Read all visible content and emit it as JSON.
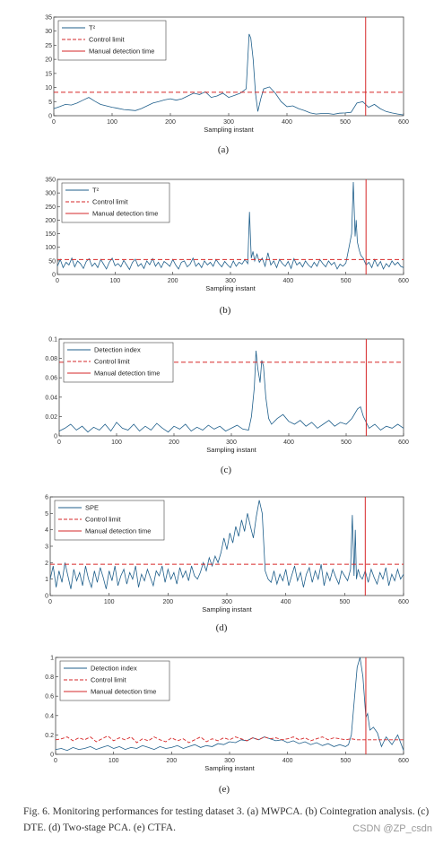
{
  "caption": "Fig. 6.    Monitoring performances for testing dataset 3. (a) MWPCA. (b) Cointegration analysis. (c) DTE. (d) Two-stage PCA. (e) CTFA.",
  "watermark": "CSDN @ZP_csdn",
  "colors": {
    "series": "#1f5f8b",
    "limit": "#d62728",
    "detection": "#d62728"
  },
  "chart_data": [
    {
      "type": "line",
      "panel_label": "(a)",
      "xlabel": "Sampling instant",
      "xlim": [
        0,
        600
      ],
      "ylim": [
        0,
        35
      ],
      "xticks": [
        0,
        100,
        200,
        300,
        400,
        500,
        600
      ],
      "yticks": [
        0,
        5,
        10,
        15,
        20,
        25,
        30,
        35
      ],
      "legend": [
        "T²",
        "Control limit",
        "Manual detection time"
      ],
      "legend_position": "top-left",
      "control_limit": 8.3,
      "detection_time": 535,
      "series": {
        "name": "T²",
        "x": [
          0,
          10,
          20,
          30,
          40,
          50,
          60,
          70,
          80,
          90,
          100,
          110,
          120,
          130,
          140,
          150,
          160,
          170,
          180,
          190,
          200,
          210,
          220,
          230,
          240,
          250,
          260,
          270,
          280,
          290,
          300,
          310,
          320,
          330,
          335,
          338,
          342,
          346,
          350,
          355,
          360,
          370,
          380,
          390,
          400,
          410,
          420,
          430,
          440,
          450,
          460,
          470,
          480,
          490,
          500,
          510,
          520,
          530,
          540,
          550,
          560,
          570,
          580,
          590,
          600
        ],
        "y": [
          2.5,
          3.2,
          4.0,
          3.8,
          4.5,
          5.5,
          6.5,
          5.2,
          4.0,
          3.5,
          3.0,
          2.6,
          2.2,
          2.0,
          1.8,
          2.5,
          3.5,
          4.5,
          5.0,
          5.6,
          6.0,
          5.5,
          6.0,
          7.0,
          8.0,
          7.5,
          8.5,
          6.5,
          7.0,
          8.0,
          6.5,
          7.2,
          8.0,
          9.5,
          29.0,
          27.5,
          20.0,
          8.0,
          1.5,
          6.0,
          9.5,
          10.2,
          8.0,
          5.0,
          3.2,
          3.5,
          2.5,
          1.8,
          1.0,
          0.6,
          0.8,
          0.8,
          0.5,
          0.9,
          1.0,
          1.2,
          4.5,
          5.0,
          3.0,
          4.0,
          2.5,
          1.5,
          1.0,
          0.6,
          0.3
        ]
      }
    },
    {
      "type": "line",
      "panel_label": "(b)",
      "xlabel": "Sampling instant",
      "xlim": [
        0,
        600
      ],
      "ylim": [
        0,
        350
      ],
      "xticks": [
        0,
        100,
        200,
        300,
        400,
        500,
        600
      ],
      "yticks": [
        0,
        50,
        100,
        150,
        200,
        250,
        300,
        350
      ],
      "legend": [
        "T²",
        "Control limit",
        "Manual detection time"
      ],
      "legend_position": "top-left",
      "control_limit": 55,
      "detection_time": 535,
      "series": {
        "name": "T²",
        "x": [
          0,
          5,
          10,
          15,
          20,
          25,
          30,
          35,
          40,
          45,
          50,
          55,
          60,
          65,
          70,
          75,
          80,
          85,
          90,
          95,
          100,
          105,
          110,
          115,
          120,
          125,
          130,
          135,
          140,
          145,
          150,
          155,
          160,
          165,
          170,
          175,
          180,
          185,
          190,
          195,
          200,
          205,
          210,
          215,
          220,
          225,
          230,
          235,
          240,
          245,
          250,
          255,
          260,
          265,
          270,
          275,
          280,
          285,
          290,
          295,
          300,
          305,
          310,
          315,
          320,
          325,
          330,
          333,
          336,
          339,
          342,
          346,
          350,
          355,
          360,
          365,
          370,
          375,
          380,
          385,
          390,
          395,
          400,
          405,
          410,
          415,
          420,
          425,
          430,
          435,
          440,
          445,
          450,
          455,
          460,
          465,
          470,
          475,
          480,
          485,
          490,
          495,
          500,
          505,
          510,
          513,
          516,
          518,
          520,
          523,
          526,
          530,
          535,
          540,
          545,
          550,
          555,
          560,
          565,
          570,
          575,
          580,
          585,
          590,
          595,
          600
        ],
        "y": [
          30,
          55,
          25,
          45,
          35,
          60,
          28,
          50,
          40,
          22,
          48,
          58,
          30,
          42,
          25,
          55,
          38,
          20,
          45,
          60,
          32,
          40,
          28,
          52,
          35,
          18,
          44,
          56,
          30,
          40,
          22,
          50,
          36,
          58,
          30,
          45,
          25,
          48,
          40,
          30,
          55,
          35,
          20,
          45,
          50,
          28,
          38,
          60,
          30,
          42,
          25,
          50,
          35,
          45,
          30,
          55,
          40,
          28,
          48,
          35,
          25,
          50,
          30,
          45,
          38,
          55,
          40,
          230,
          60,
          85,
          50,
          75,
          45,
          60,
          30,
          80,
          35,
          50,
          25,
          55,
          40,
          30,
          48,
          22,
          58,
          35,
          45,
          28,
          50,
          35,
          25,
          45,
          30,
          55,
          40,
          28,
          50,
          35,
          45,
          20,
          38,
          30,
          42,
          95,
          150,
          340,
          140,
          200,
          120,
          90,
          70,
          60,
          35,
          45,
          25,
          55,
          30,
          48,
          20,
          40,
          28,
          50,
          35,
          45,
          30,
          25
        ]
      }
    },
    {
      "type": "line",
      "panel_label": "(c)",
      "xlabel": "Sampling instant",
      "xlim": [
        0,
        600
      ],
      "ylim": [
        0,
        0.1
      ],
      "xticks": [
        0,
        100,
        200,
        300,
        400,
        500,
        600
      ],
      "yticks": [
        0,
        0.02,
        0.04,
        0.06,
        0.08,
        0.1
      ],
      "legend": [
        "Detection index",
        "Control limit",
        "Manual detection time"
      ],
      "legend_position": "top-left",
      "control_limit": 0.076,
      "detection_time": 535,
      "series": {
        "name": "Detection index",
        "x": [
          0,
          10,
          20,
          30,
          40,
          50,
          60,
          70,
          80,
          90,
          100,
          110,
          120,
          130,
          140,
          150,
          160,
          170,
          180,
          190,
          200,
          210,
          220,
          230,
          240,
          250,
          260,
          270,
          280,
          290,
          300,
          310,
          320,
          330,
          335,
          340,
          343,
          346,
          350,
          353,
          356,
          360,
          365,
          370,
          380,
          390,
          400,
          410,
          420,
          430,
          440,
          450,
          460,
          470,
          480,
          490,
          500,
          510,
          520,
          525,
          530,
          540,
          550,
          560,
          570,
          580,
          590,
          600
        ],
        "y": [
          0.005,
          0.008,
          0.012,
          0.006,
          0.01,
          0.004,
          0.009,
          0.006,
          0.012,
          0.005,
          0.014,
          0.008,
          0.006,
          0.012,
          0.005,
          0.01,
          0.006,
          0.013,
          0.008,
          0.004,
          0.01,
          0.007,
          0.012,
          0.005,
          0.009,
          0.006,
          0.011,
          0.007,
          0.01,
          0.005,
          0.008,
          0.011,
          0.007,
          0.006,
          0.02,
          0.05,
          0.088,
          0.07,
          0.055,
          0.078,
          0.072,
          0.04,
          0.018,
          0.012,
          0.018,
          0.022,
          0.015,
          0.012,
          0.016,
          0.01,
          0.014,
          0.008,
          0.012,
          0.016,
          0.01,
          0.014,
          0.012,
          0.018,
          0.028,
          0.03,
          0.02,
          0.008,
          0.012,
          0.006,
          0.01,
          0.008,
          0.012,
          0.008
        ]
      }
    },
    {
      "type": "line",
      "panel_label": "(d)",
      "xlabel": "Sampling instant",
      "xlim": [
        0,
        600
      ],
      "ylim": [
        0,
        6
      ],
      "xticks": [
        0,
        100,
        200,
        300,
        400,
        500,
        600
      ],
      "yticks": [
        0,
        1,
        2,
        3,
        4,
        5,
        6
      ],
      "legend": [
        "SPE",
        "Control limit",
        "Manual detection time"
      ],
      "legend_position": "top-left",
      "control_limit": 1.9,
      "detection_time": 535,
      "series": {
        "name": "SPE",
        "x": [
          0,
          5,
          10,
          15,
          20,
          25,
          30,
          35,
          40,
          45,
          50,
          55,
          60,
          65,
          70,
          75,
          80,
          85,
          90,
          95,
          100,
          105,
          110,
          115,
          120,
          125,
          130,
          135,
          140,
          145,
          150,
          155,
          160,
          165,
          170,
          175,
          180,
          185,
          190,
          195,
          200,
          205,
          210,
          215,
          220,
          225,
          230,
          235,
          240,
          245,
          250,
          255,
          260,
          265,
          270,
          275,
          280,
          285,
          290,
          295,
          300,
          305,
          310,
          315,
          320,
          325,
          330,
          335,
          340,
          345,
          350,
          355,
          360,
          365,
          370,
          375,
          380,
          385,
          390,
          395,
          400,
          405,
          410,
          415,
          420,
          425,
          430,
          435,
          440,
          445,
          450,
          455,
          460,
          465,
          470,
          475,
          480,
          485,
          490,
          495,
          500,
          505,
          510,
          513,
          516,
          518,
          520,
          523,
          526,
          530,
          535,
          540,
          545,
          550,
          555,
          560,
          565,
          570,
          575,
          580,
          585,
          590,
          595,
          600
        ],
        "y": [
          1.0,
          1.8,
          0.5,
          1.5,
          0.8,
          2.0,
          1.2,
          0.4,
          1.6,
          0.9,
          1.4,
          0.6,
          1.8,
          1.0,
          0.5,
          1.5,
          0.8,
          1.7,
          1.1,
          0.4,
          1.5,
          0.9,
          1.8,
          0.6,
          1.2,
          1.6,
          0.7,
          1.4,
          1.0,
          1.8,
          0.5,
          1.3,
          0.9,
          1.6,
          1.1,
          0.6,
          1.5,
          1.2,
          1.8,
          0.8,
          1.6,
          1.0,
          1.4,
          0.7,
          1.7,
          1.1,
          1.5,
          0.9,
          1.8,
          1.2,
          1.0,
          1.4,
          2.0,
          1.5,
          2.3,
          1.8,
          2.4,
          2.0,
          2.6,
          3.5,
          2.8,
          3.8,
          3.2,
          4.2,
          3.6,
          4.6,
          3.9,
          5.0,
          4.2,
          3.5,
          4.8,
          5.8,
          5.0,
          1.5,
          1.0,
          0.8,
          1.5,
          0.7,
          1.3,
          0.9,
          1.6,
          0.6,
          1.2,
          1.8,
          0.9,
          1.4,
          0.5,
          1.3,
          1.7,
          0.8,
          1.5,
          1.0,
          1.9,
          0.6,
          1.4,
          0.9,
          1.6,
          1.1,
          0.7,
          1.5,
          1.2,
          0.9,
          1.6,
          4.9,
          1.2,
          4.0,
          1.0,
          1.6,
          1.2,
          1.0,
          1.5,
          0.8,
          1.6,
          1.1,
          0.7,
          1.4,
          1.0,
          1.7,
          0.6,
          1.3,
          0.9,
          1.6,
          1.0,
          1.3
        ]
      }
    },
    {
      "type": "line",
      "panel_label": "(e)",
      "xlabel": "Sampling instant",
      "xlim": [
        0,
        600
      ],
      "ylim": [
        0,
        1
      ],
      "xticks": [
        0,
        100,
        200,
        300,
        400,
        500,
        600
      ],
      "yticks": [
        0,
        0.2,
        0.4,
        0.6,
        0.8,
        1
      ],
      "legend": [
        "Detection index",
        "Control limit",
        "Manual detection time"
      ],
      "legend_position": "top-left",
      "detection_time": 535,
      "series": [
        {
          "name": "Detection index",
          "x": [
            0,
            10,
            20,
            30,
            40,
            50,
            60,
            70,
            80,
            90,
            100,
            110,
            120,
            130,
            140,
            150,
            160,
            170,
            180,
            190,
            200,
            210,
            220,
            230,
            240,
            250,
            260,
            270,
            280,
            290,
            300,
            310,
            320,
            330,
            340,
            350,
            360,
            370,
            380,
            390,
            400,
            410,
            420,
            430,
            440,
            450,
            460,
            470,
            480,
            490,
            500,
            505,
            510,
            515,
            520,
            525,
            530,
            535,
            538,
            542,
            548,
            555,
            562,
            570,
            580,
            590,
            600
          ],
          "y": [
            0.05,
            0.06,
            0.04,
            0.07,
            0.05,
            0.06,
            0.08,
            0.05,
            0.07,
            0.09,
            0.06,
            0.08,
            0.05,
            0.07,
            0.06,
            0.09,
            0.07,
            0.05,
            0.08,
            0.06,
            0.07,
            0.09,
            0.06,
            0.08,
            0.1,
            0.07,
            0.09,
            0.08,
            0.11,
            0.1,
            0.13,
            0.12,
            0.15,
            0.14,
            0.17,
            0.15,
            0.18,
            0.16,
            0.14,
            0.15,
            0.12,
            0.14,
            0.11,
            0.13,
            0.1,
            0.12,
            0.09,
            0.11,
            0.08,
            0.1,
            0.08,
            0.1,
            0.2,
            0.55,
            0.9,
            1.0,
            0.8,
            0.38,
            0.42,
            0.25,
            0.28,
            0.22,
            0.08,
            0.18,
            0.1,
            0.2,
            0.04
          ]
        },
        {
          "name": "Control limit",
          "x": [
            0,
            10,
            20,
            30,
            40,
            50,
            60,
            70,
            80,
            90,
            100,
            110,
            120,
            130,
            140,
            150,
            160,
            170,
            180,
            190,
            200,
            210,
            220,
            230,
            240,
            250,
            260,
            270,
            280,
            290,
            300,
            310,
            320,
            330,
            340,
            350,
            360,
            370,
            380,
            390,
            400,
            410,
            420,
            430,
            440,
            450,
            460,
            470,
            480,
            490,
            500,
            510,
            520,
            530,
            540,
            550,
            560,
            570,
            580,
            590,
            600
          ],
          "y": [
            0.15,
            0.16,
            0.18,
            0.14,
            0.17,
            0.15,
            0.18,
            0.13,
            0.16,
            0.19,
            0.14,
            0.17,
            0.15,
            0.18,
            0.12,
            0.16,
            0.14,
            0.18,
            0.15,
            0.13,
            0.17,
            0.14,
            0.16,
            0.12,
            0.15,
            0.18,
            0.13,
            0.16,
            0.14,
            0.17,
            0.15,
            0.18,
            0.16,
            0.14,
            0.17,
            0.15,
            0.18,
            0.16,
            0.17,
            0.15,
            0.16,
            0.18,
            0.15,
            0.17,
            0.14,
            0.16,
            0.18,
            0.15,
            0.17,
            0.16,
            0.15,
            0.16,
            0.15,
            0.15,
            0.15,
            0.15,
            0.15,
            0.15,
            0.15,
            0.15,
            0.15
          ]
        }
      ]
    }
  ]
}
